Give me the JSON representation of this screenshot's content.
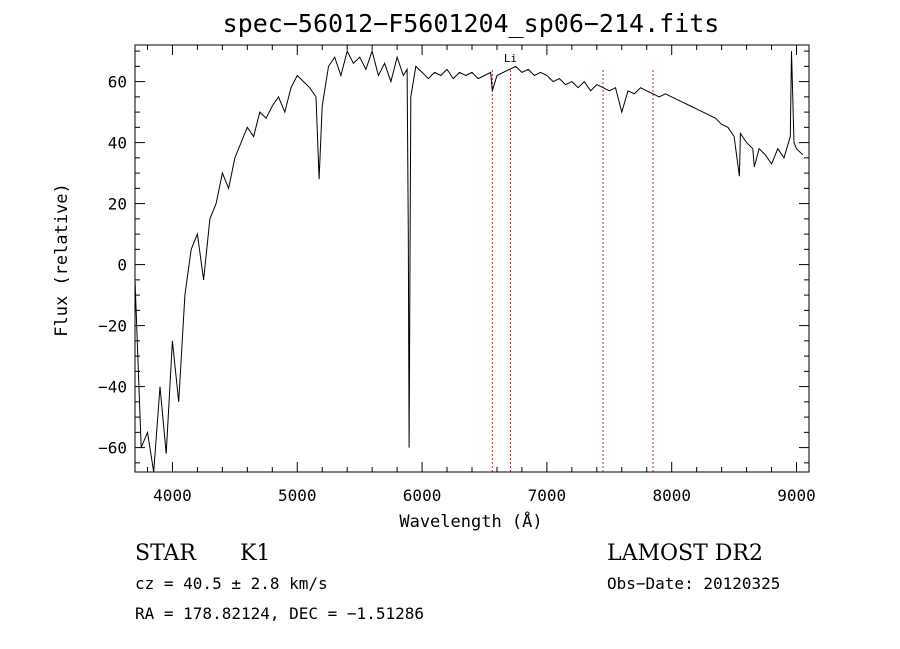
{
  "chart_data": {
    "type": "line",
    "title": "spec−56012−F5601204_sp06−214.fits",
    "xlabel": "Wavelength (Å)",
    "ylabel": "Flux (relative)",
    "xlim": [
      3700,
      9100
    ],
    "ylim": [
      -68,
      72
    ],
    "xticks": [
      4000,
      5000,
      6000,
      7000,
      8000,
      9000
    ],
    "yticks": [
      -60,
      -40,
      -20,
      0,
      20,
      40,
      60
    ],
    "ytick_labels": [
      "−60",
      "−40",
      "−20",
      "0",
      "20",
      "40",
      "60"
    ],
    "grid": false,
    "series": [
      {
        "x": [
          3700,
          3750,
          3800,
          3850,
          3900,
          3950,
          4000,
          4050,
          4100,
          4150,
          4200,
          4250,
          4300,
          4350,
          4400,
          4450,
          4500,
          4550,
          4600,
          4650,
          4700,
          4750,
          4800,
          4850,
          4900,
          4950,
          5000,
          5050,
          5100,
          5150,
          5175,
          5200,
          5250,
          5300,
          5350,
          5400,
          5450,
          5500,
          5550,
          5600,
          5650,
          5700,
          5750,
          5800,
          5850,
          5880,
          5890,
          5896,
          5910,
          5950,
          6000,
          6050,
          6100,
          6150,
          6200,
          6250,
          6300,
          6350,
          6400,
          6450,
          6500,
          6550,
          6563,
          6600,
          6650,
          6700,
          6750,
          6800,
          6850,
          6900,
          6950,
          7000,
          7050,
          7100,
          7150,
          7200,
          7250,
          7300,
          7350,
          7400,
          7450,
          7500,
          7550,
          7600,
          7650,
          7700,
          7750,
          7800,
          7850,
          7900,
          7950,
          8000,
          8050,
          8100,
          8150,
          8200,
          8250,
          8300,
          8350,
          8400,
          8450,
          8500,
          8542,
          8550,
          8600,
          8650,
          8662,
          8700,
          8750,
          8800,
          8850,
          8900,
          8950,
          8960,
          8980,
          9000,
          9050
        ],
        "values": [
          -5,
          -60,
          -55,
          -68,
          -40,
          -62,
          -25,
          -45,
          -10,
          5,
          10,
          -5,
          15,
          20,
          30,
          25,
          35,
          40,
          45,
          42,
          50,
          48,
          52,
          55,
          50,
          58,
          62,
          60,
          58,
          55,
          28,
          52,
          65,
          68,
          62,
          70,
          66,
          68,
          64,
          70,
          62,
          66,
          60,
          68,
          62,
          64,
          10,
          -60,
          55,
          65,
          63,
          61,
          63,
          62,
          64,
          61,
          63,
          62,
          63,
          61,
          62,
          63,
          57,
          62,
          63,
          64,
          65,
          63,
          64,
          62,
          63,
          62,
          60,
          61,
          59,
          60,
          58,
          60,
          57,
          59,
          58,
          57,
          58,
          50,
          57,
          56,
          58,
          57,
          56,
          55,
          56,
          55,
          54,
          53,
          52,
          51,
          50,
          49,
          48,
          46,
          45,
          42,
          29,
          43,
          40,
          38,
          32,
          38,
          36,
          33,
          38,
          35,
          42,
          70,
          40,
          38,
          36
        ]
      }
    ],
    "line_markers": [
      {
        "x": 6563,
        "label": ""
      },
      {
        "x": 6708,
        "label": "Li"
      },
      {
        "x": 7450,
        "label": ""
      },
      {
        "x": 7850,
        "label": ""
      }
    ],
    "annotations": {
      "object_class": "STAR",
      "subclass": "K1",
      "survey": "LAMOST DR2",
      "redshift": "cz = 40.5 ± 2.8 km/s",
      "obs_date": "Obs−Date: 20120325",
      "coords": "RA = 178.82124, DEC =  −1.51286"
    },
    "colors": {
      "spectrum": "#000000",
      "line_markers": "#b03030",
      "frame": "#000000"
    }
  }
}
